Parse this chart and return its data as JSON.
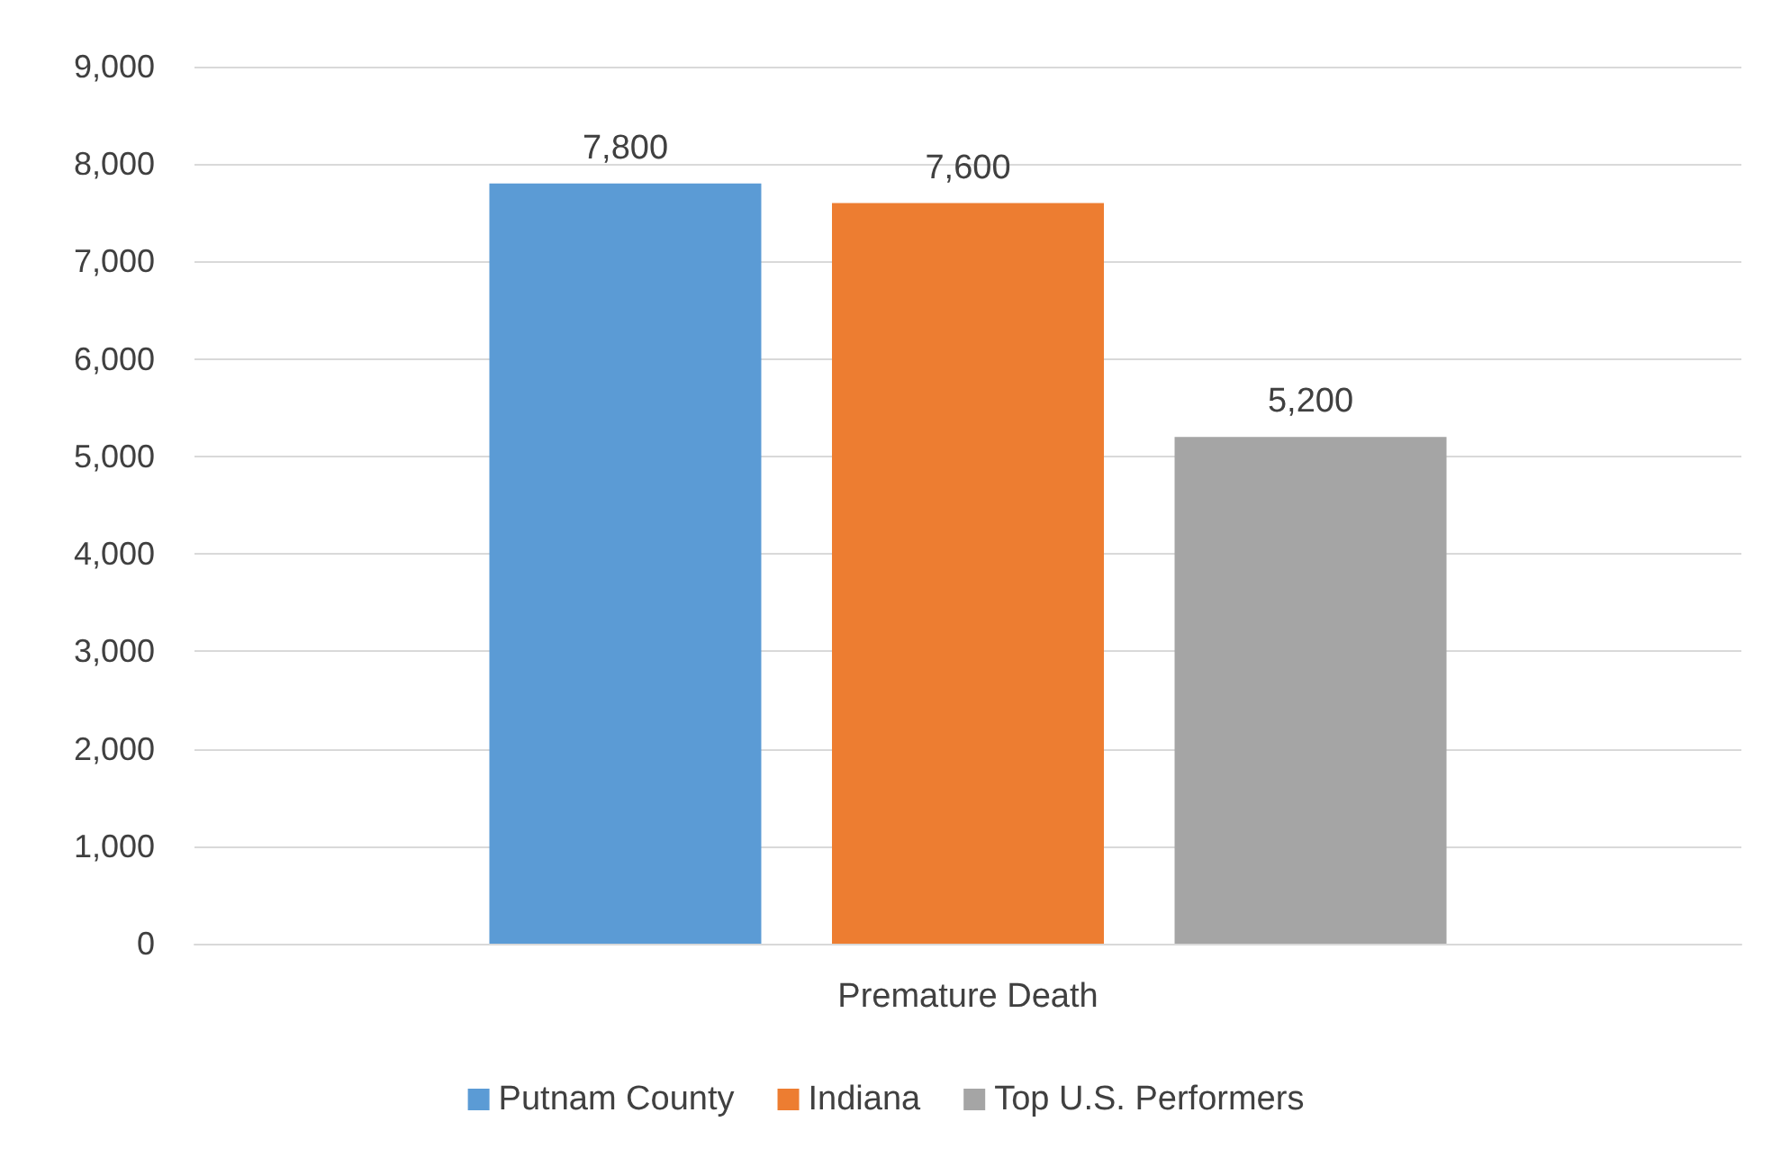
{
  "chart_data": {
    "type": "bar",
    "xlabel": null,
    "categories": [
      "Premature Death"
    ],
    "series": [
      {
        "name": "Putnam County",
        "color": "#5b9bd5",
        "values": [
          7800
        ],
        "value_labels": [
          "7,800"
        ]
      },
      {
        "name": "Indiana",
        "color": "#ed7d31",
        "values": [
          7600
        ],
        "value_labels": [
          "7,600"
        ]
      },
      {
        "name": "Top U.S. Performers",
        "color": "#a5a5a5",
        "values": [
          5200
        ],
        "value_labels": [
          "5,200"
        ]
      }
    ],
    "ylim": [
      0,
      9000
    ],
    "yticks": [
      {
        "value": 0,
        "label": "0"
      },
      {
        "value": 1000,
        "label": "1,000"
      },
      {
        "value": 2000,
        "label": "2,000"
      },
      {
        "value": 3000,
        "label": "3,000"
      },
      {
        "value": 4000,
        "label": "4,000"
      },
      {
        "value": 5000,
        "label": "5,000"
      },
      {
        "value": 6000,
        "label": "6,000"
      },
      {
        "value": 7000,
        "label": "7,000"
      },
      {
        "value": 8000,
        "label": "8,000"
      },
      {
        "value": 9000,
        "label": "9,000"
      }
    ],
    "grid": "y",
    "legend": "bottom"
  }
}
